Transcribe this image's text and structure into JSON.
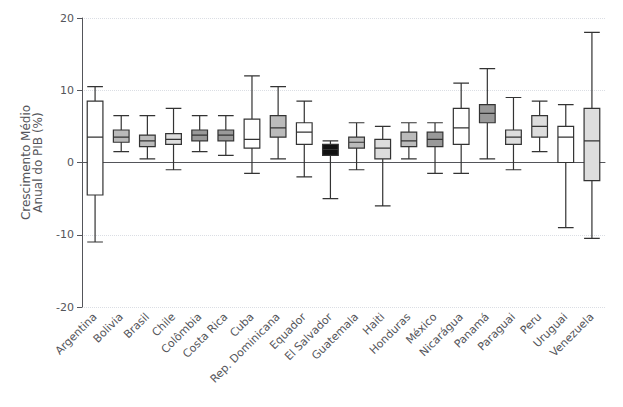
{
  "chart_data": {
    "type": "boxplot",
    "ylabel": "Crescimento Médio\nAnual do PIB (%)",
    "categories": [
      "Argentina",
      "Bolivia",
      "Brasil",
      "Chile",
      "Colômbia",
      "Costa Rica",
      "Cuba",
      "Rep. Dominicana",
      "Equador",
      "El Salvador",
      "Guatemala",
      "Haiti",
      "Honduras",
      "México",
      "Nicarágua",
      "Panamá",
      "Paraguai",
      "Peru",
      "Uruguai",
      "Venezuela"
    ],
    "values": [
      [
        -11.0,
        -4.5,
        3.5,
        8.5,
        10.5
      ],
      [
        1.5,
        2.8,
        3.5,
        4.5,
        6.5
      ],
      [
        0.5,
        2.2,
        3.0,
        3.8,
        6.5
      ],
      [
        -1.0,
        2.5,
        3.2,
        4.0,
        7.5
      ],
      [
        1.5,
        3.0,
        3.8,
        4.5,
        6.5
      ],
      [
        1.0,
        3.0,
        3.8,
        4.5,
        6.5
      ],
      [
        -1.5,
        2.0,
        3.2,
        6.0,
        12.0
      ],
      [
        0.5,
        3.5,
        4.8,
        6.5,
        10.5
      ],
      [
        -2.0,
        2.5,
        4.2,
        5.5,
        8.5
      ],
      [
        -5.0,
        1.0,
        1.8,
        2.5,
        3.0
      ],
      [
        -1.0,
        2.0,
        2.8,
        3.5,
        5.5
      ],
      [
        -6.0,
        0.5,
        2.0,
        3.2,
        5.0
      ],
      [
        0.5,
        2.2,
        3.0,
        4.2,
        5.5
      ],
      [
        -1.5,
        2.2,
        3.2,
        4.2,
        5.5
      ],
      [
        -1.5,
        2.5,
        4.8,
        7.5,
        11.0
      ],
      [
        0.5,
        5.5,
        6.8,
        8.0,
        13.0
      ],
      [
        -1.0,
        2.5,
        3.5,
        4.5,
        9.0
      ],
      [
        1.5,
        3.5,
        5.0,
        6.5,
        8.5
      ],
      [
        -9.0,
        0.0,
        3.5,
        5.0,
        8.0
      ],
      [
        -10.5,
        -2.5,
        3.0,
        7.5,
        18.0
      ]
    ],
    "colors": [
      "#ffffff",
      "#bbbbbb",
      "#bbbbbb",
      "#dddddd",
      "#999999",
      "#999999",
      "#ffffff",
      "#bbbbbb",
      "#ffffff",
      "#111111",
      "#bbbbbb",
      "#dddddd",
      "#bbbbbb",
      "#999999",
      "#ffffff",
      "#999999",
      "#dddddd",
      "#dddddd",
      "#ffffff",
      "#dddddd"
    ],
    "ylim": [
      -20,
      20
    ],
    "yticks": [
      -20,
      -10,
      0,
      10,
      20
    ],
    "grid": true
  }
}
